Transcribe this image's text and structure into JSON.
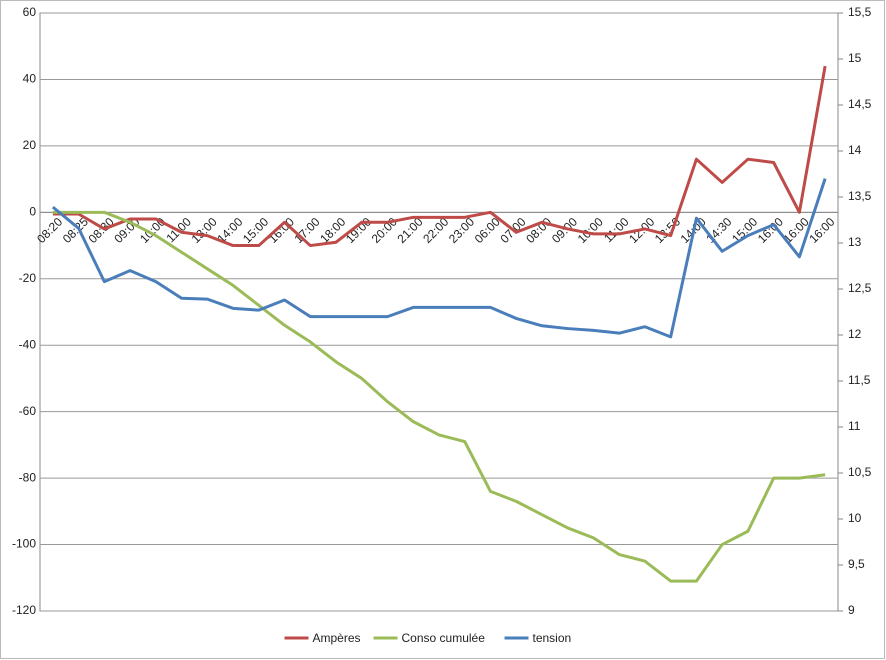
{
  "chart_data": {
    "type": "line",
    "categories": [
      "08:20",
      "08:25",
      "08:30",
      "09:00",
      "10:00",
      "11:00",
      "13:00",
      "14:00",
      "15:00",
      "16:00",
      "17:00",
      "18:00",
      "19:00",
      "20:00",
      "21:00",
      "22:00",
      "23:00",
      "06:00",
      "07:00",
      "08:00",
      "09:00",
      "10:00",
      "11:00",
      "12:00",
      "13:56",
      "14:00",
      "14:30",
      "15:00",
      "16:00",
      "16:00",
      "16:00"
    ],
    "series": [
      {
        "name": "Ampères",
        "color": "#be4b48",
        "values": [
          -0.5,
          -0.5,
          -5,
          -2,
          -2,
          -6,
          -7,
          -10,
          -10,
          -3,
          -10,
          -9,
          -3,
          -3,
          -1.5,
          -1.5,
          -1.5,
          0,
          -6,
          -3,
          -5,
          -6.5,
          -6.5,
          -5,
          -7,
          16,
          9,
          16,
          15,
          0,
          44
        ]
      },
      {
        "name": "Conso cumulée",
        "color": "#9bbb59",
        "values": [
          0,
          0,
          0,
          -3,
          -7,
          -12,
          -17,
          -22,
          -28,
          -34,
          -39,
          -45,
          -50,
          -57,
          -63,
          -67,
          -69,
          -84,
          -87,
          -91,
          -95,
          -98,
          -103,
          -105,
          -111,
          -111,
          -100,
          -96,
          -80,
          -80,
          -79
        ]
      },
      {
        "name": "tension",
        "color": "#4a7ebb",
        "axis": "y2",
        "values": [
          13.39,
          13.16,
          12.58,
          12.7,
          12.58,
          12.4,
          12.39,
          12.29,
          12.27,
          12.38,
          12.2,
          12.2,
          12.2,
          12.2,
          12.3,
          12.3,
          12.3,
          12.3,
          12.18,
          12.1,
          12.07,
          12.05,
          12.02,
          12.09,
          11.98,
          13.27,
          12.91,
          13.08,
          13.2,
          12.85,
          13.7
        ]
      }
    ],
    "ylim": [
      -120,
      60
    ],
    "yticks": [
      -120,
      -100,
      -80,
      -60,
      -40,
      -20,
      0,
      20,
      40,
      60
    ],
    "y2lim": [
      9,
      15.5
    ],
    "y2ticks": [
      9,
      {
        "value": 9.5,
        "label": "9,5"
      },
      10,
      {
        "value": 10.5,
        "label": "10,5"
      },
      11,
      {
        "value": 11.5,
        "label": "11,5"
      },
      12,
      {
        "value": 12.5,
        "label": "12,5"
      },
      13,
      {
        "value": 13.5,
        "label": "13,5"
      },
      14,
      {
        "value": 14.5,
        "label": "14,5"
      },
      15,
      {
        "value": 15.5,
        "label": "15,5"
      }
    ],
    "grid": true,
    "legend": "bottom"
  }
}
